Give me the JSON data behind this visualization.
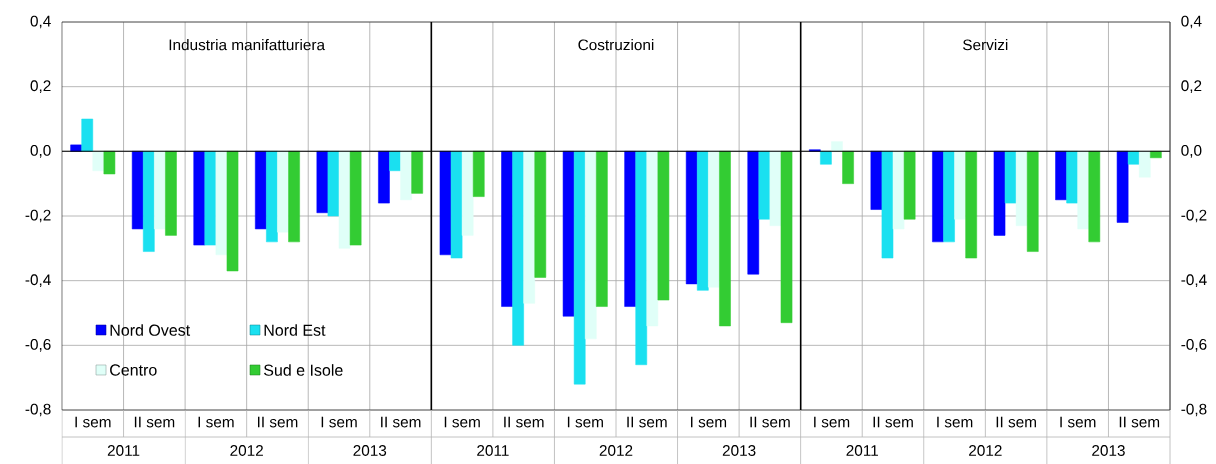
{
  "chart_data": {
    "type": "bar",
    "categories": [
      "I sem",
      "II sem",
      "I sem",
      "II sem",
      "I sem",
      "II sem",
      "I sem",
      "II sem",
      "I sem",
      "II sem",
      "I sem",
      "II sem",
      "I sem",
      "II sem",
      "I sem",
      "II sem",
      "I sem",
      "II sem"
    ],
    "series": [
      {
        "name": "Nord Ovest",
        "color": "#0000ff",
        "values": [
          0.02,
          -0.24,
          -0.29,
          -0.24,
          -0.19,
          -0.16,
          -0.32,
          -0.48,
          -0.51,
          -0.48,
          -0.41,
          -0.38,
          0.005,
          -0.18,
          -0.28,
          -0.26,
          -0.15,
          -0.22
        ]
      },
      {
        "name": "Nord Est",
        "color": "#1ae0f0",
        "values": [
          0.1,
          -0.31,
          -0.29,
          -0.28,
          -0.2,
          -0.06,
          -0.33,
          -0.6,
          -0.72,
          -0.66,
          -0.43,
          -0.21,
          -0.04,
          -0.33,
          -0.28,
          -0.16,
          -0.16,
          -0.04
        ]
      },
      {
        "name": "Centro",
        "color": "#e0fff8",
        "values": [
          -0.06,
          -0.24,
          -0.32,
          -0.25,
          -0.3,
          -0.15,
          -0.26,
          -0.47,
          -0.58,
          -0.54,
          -0.42,
          -0.23,
          0.03,
          -0.24,
          -0.21,
          -0.23,
          -0.24,
          -0.08
        ]
      },
      {
        "name": "Sud e Isole",
        "color": "#33cc33",
        "values": [
          -0.07,
          -0.26,
          -0.37,
          -0.28,
          -0.29,
          -0.13,
          -0.14,
          -0.39,
          -0.48,
          -0.46,
          -0.54,
          -0.53,
          -0.1,
          -0.21,
          -0.33,
          -0.31,
          -0.28,
          -0.02
        ]
      }
    ],
    "ylim": [
      -0.8,
      0.4
    ],
    "yticks": [
      {
        "value": -0.8,
        "label": "-0,8"
      },
      {
        "value": -0.6,
        "label": "-0,6"
      },
      {
        "value": -0.4,
        "label": "-0,4"
      },
      {
        "value": -0.2,
        "label": "-0,2"
      },
      {
        "value": 0,
        "label": "0,0"
      },
      {
        "value": 0.2,
        "label": "0,2"
      },
      {
        "value": 0.4,
        "label": "0,4"
      }
    ],
    "y2lim": [
      -0.8,
      0.4
    ],
    "y2ticks": [
      {
        "value": -0.8,
        "label": "-0,8"
      },
      {
        "value": -0.6,
        "label": "-0,6"
      },
      {
        "value": -0.4,
        "label": "-0,4"
      },
      {
        "value": -0.2,
        "label": "-0,2"
      },
      {
        "value": 0,
        "label": "0,0"
      },
      {
        "value": 0.2,
        "label": "0,2"
      },
      {
        "value": 0.4,
        "label": "0,4"
      }
    ],
    "annotations": [
      "Industria manifatturiera",
      "Costruzioni",
      "Servizi",
      "2011",
      "2012",
      "2013",
      "2011",
      "2012",
      "2013",
      "2011",
      "2012",
      "2013"
    ],
    "grid": true,
    "legend": "bottom left"
  }
}
